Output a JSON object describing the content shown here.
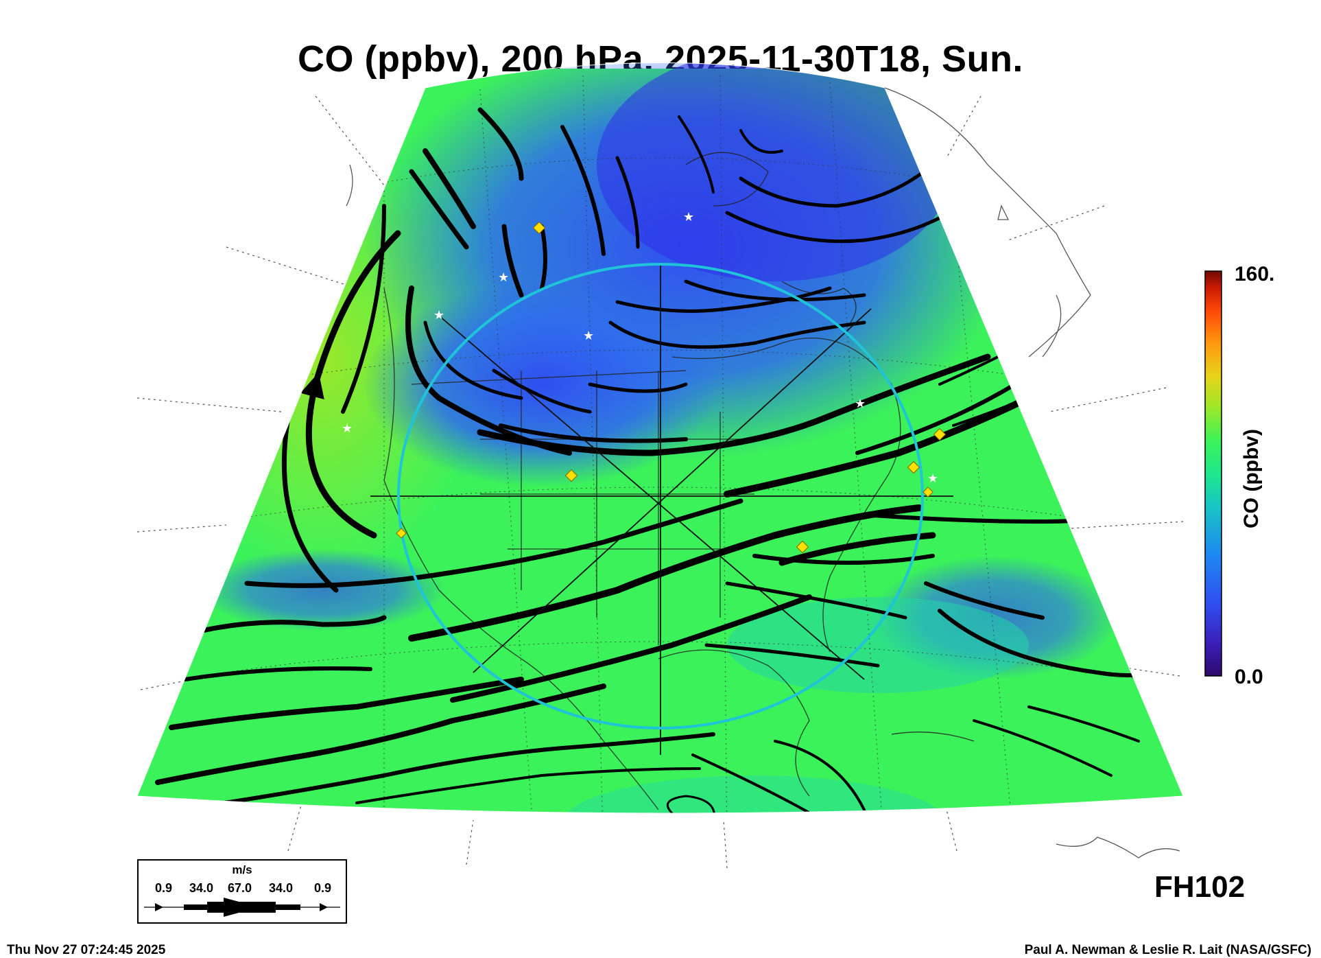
{
  "title": "CO (ppbv), 200 hPa, 2025-11-30T18, Sun.",
  "colorbar": {
    "max_label": "160.",
    "min_label": "0.0",
    "title": "CO (ppbv)",
    "colors": [
      "#2c0a6b",
      "#3a1fb8",
      "#2f4ff0",
      "#1e88f0",
      "#19c6c4",
      "#1ee88a",
      "#3cf25a",
      "#9ae82a",
      "#e8d41a",
      "#ff9a10",
      "#ff4a08",
      "#c81a05",
      "#6e0a02"
    ]
  },
  "forecast_hour": "FH102",
  "wind_legend": {
    "units": "m/s",
    "values": [
      "0.9",
      "34.0",
      "67.0",
      "34.0",
      "0.9"
    ]
  },
  "footer": {
    "timestamp": "Thu Nov 27 07:24:45 2025",
    "credit": "Paul A. Newman & Leslie R. Lait (NASA/GSFC)"
  },
  "map": {
    "colors": {
      "high_co": "#9ae82a",
      "mid_co": "#3cf25a",
      "low_co": "#2f4ff0",
      "ring": "#1fc4d8",
      "station_marker": "#ffe000"
    }
  }
}
